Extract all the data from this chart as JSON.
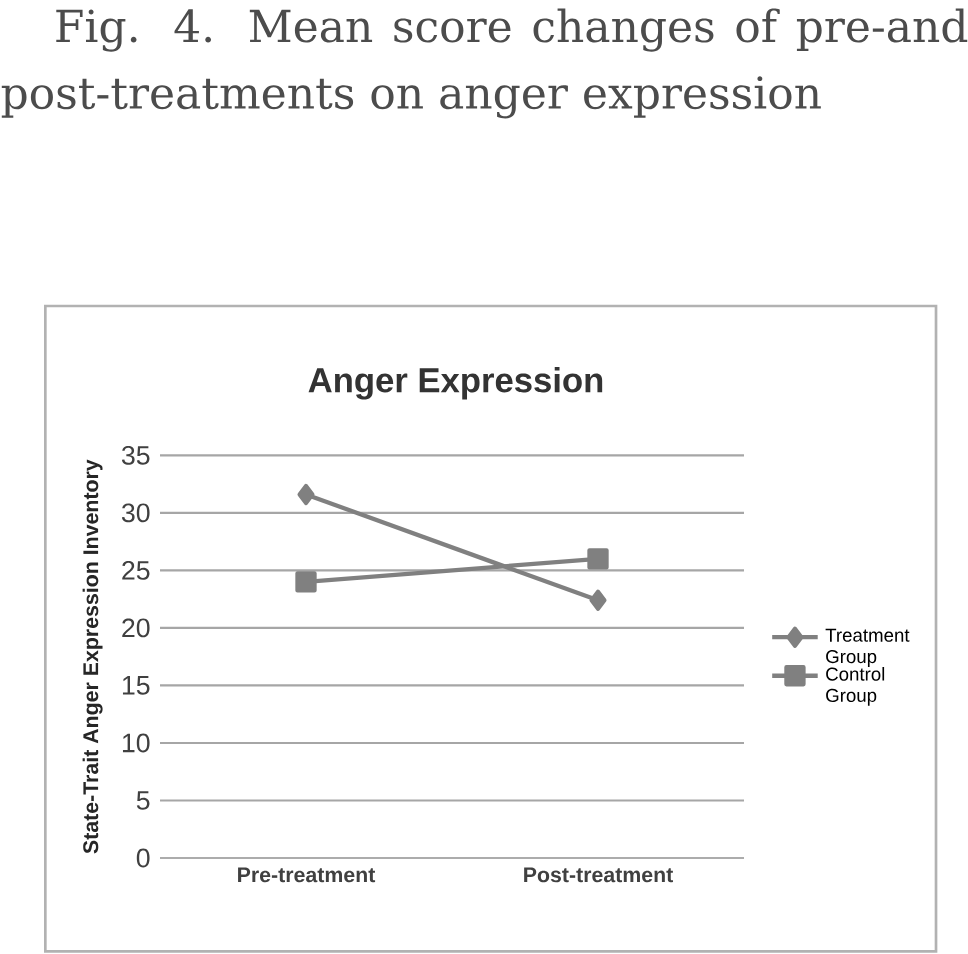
{
  "chart_data": {
    "type": "line",
    "title": "Anger Expression",
    "annotations": [
      "Fig. 4. Mean score changes of pre-and post-treatments on anger expression"
    ],
    "ylabel": "State-Trait Anger Expression Inventory",
    "categories": [
      "Pre-treatment",
      "Post-treatment"
    ],
    "series": [
      {
        "name": "Treatment Group",
        "color": "#808080",
        "marker": "diamond",
        "values": [
          31.6,
          22.4
        ]
      },
      {
        "name": "Control Group",
        "color": "#808080",
        "marker": "square",
        "values": [
          24.0,
          26.0
        ]
      }
    ],
    "ylim": [
      0,
      35
    ],
    "yticks": [
      0,
      5,
      10,
      15,
      20,
      25,
      30,
      35
    ],
    "grid": "y",
    "legend": "right",
    "line_style": "solid"
  }
}
